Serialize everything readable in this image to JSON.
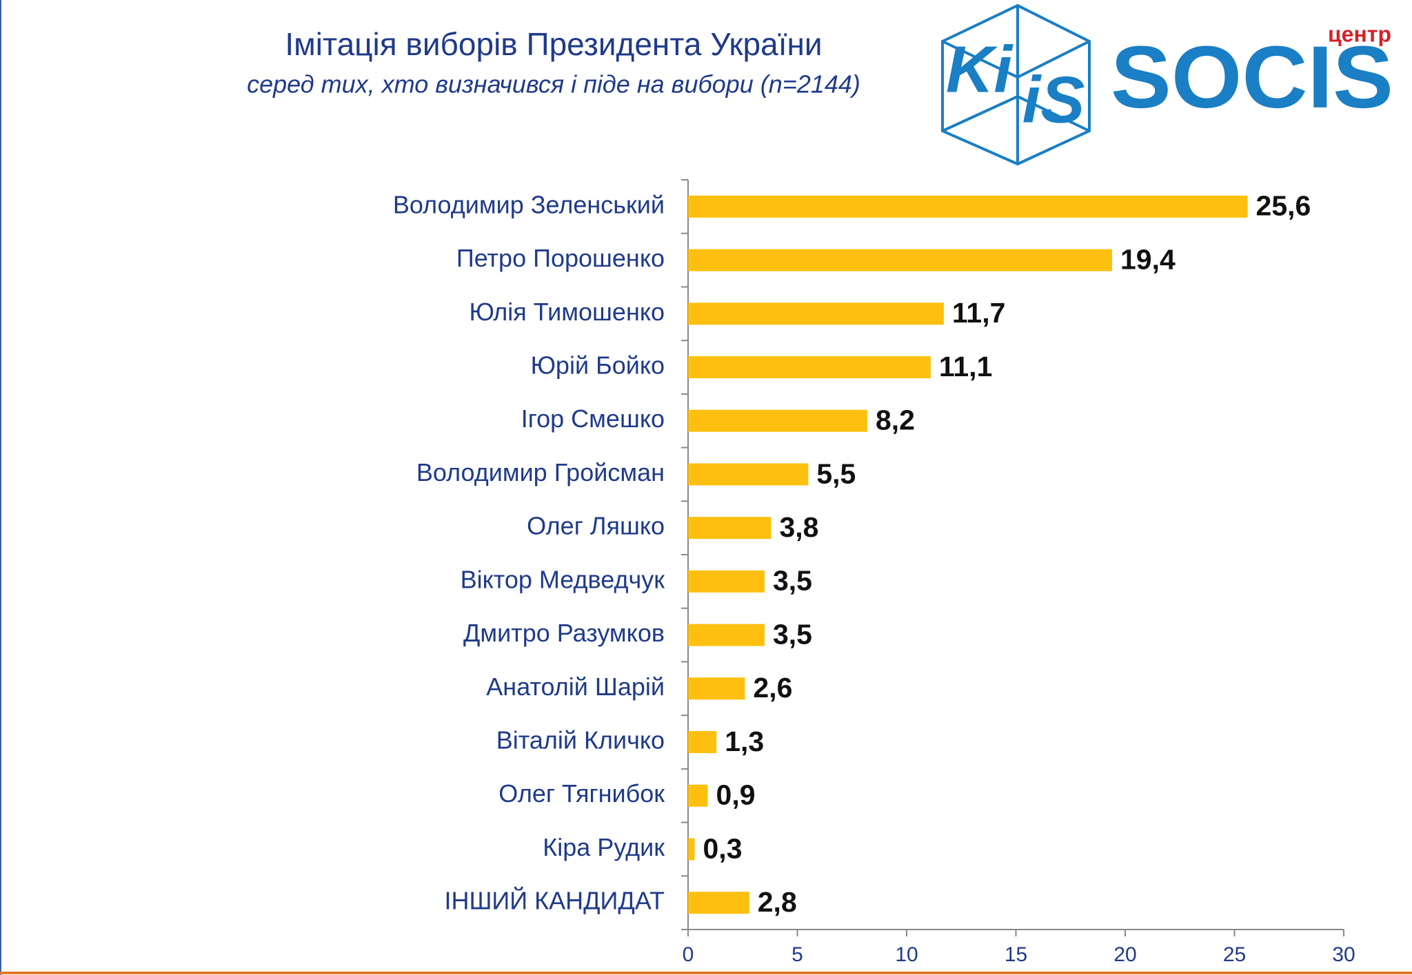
{
  "chart_data": {
    "type": "bar",
    "orientation": "horizontal",
    "title": "Імітація виборів Президента України",
    "subtitle": "серед тих, хто визначився і піде на вибори (n=2144)",
    "categories": [
      "Володимир Зеленський",
      "Петро Порошенко",
      "Юлія Тимошенко",
      "Юрій Бойко",
      "Ігор Смешко",
      "Володимир Гройсман",
      "Олег Ляшко",
      "Віктор Медведчук",
      "Дмитро Разумков",
      "Анатолій Шарій",
      "Віталій Кличко",
      "Олег Тягнибок",
      "Кіра Рудик",
      "ІНШИЙ КАНДИДАТ"
    ],
    "values": [
      25.6,
      19.4,
      11.7,
      11.1,
      8.2,
      5.5,
      3.8,
      3.5,
      3.5,
      2.6,
      1.3,
      0.9,
      0.3,
      2.8
    ],
    "value_labels": [
      "25,6",
      "19,4",
      "11,7",
      "11,1",
      "8,2",
      "5,5",
      "3,8",
      "3,5",
      "3,5",
      "2,6",
      "1,3",
      "0,9",
      "0,3",
      "2,8"
    ],
    "color": "#fdc010",
    "xlim": [
      0,
      30
    ],
    "xticks": [
      0,
      5,
      10,
      15,
      20,
      25,
      30
    ],
    "grid": false
  },
  "logos": {
    "kiis_top": "Ki",
    "kiis_bottom": "iS",
    "socis_small": "центр",
    "socis": "SOCIS"
  }
}
